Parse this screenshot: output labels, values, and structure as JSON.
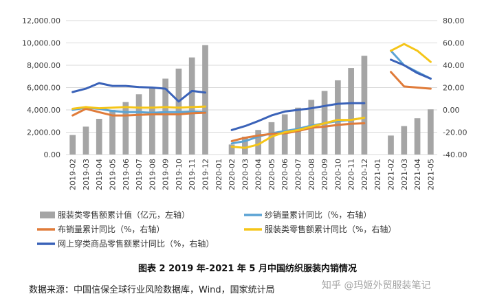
{
  "chart_data": {
    "type": "bar+line",
    "categories": [
      "2019-02",
      "2019-03",
      "2019-04",
      "2019-05",
      "2019-06",
      "2019-07",
      "2019-08",
      "2019-09",
      "2019-10",
      "2019-11",
      "2019-12",
      "2020-01",
      "2020-02",
      "2020-03",
      "2020-04",
      "2020-05",
      "2020-06",
      "2020-07",
      "2020-08",
      "2020-09",
      "2020-10",
      "2020-11",
      "2020-12",
      "2021-01",
      "2021-02",
      "2021-03",
      "2021-04",
      "2021-05"
    ],
    "left_axis": {
      "ticks": [
        "0.00",
        "2,000.00",
        "4,000.00",
        "6,000.00",
        "8,000.00",
        "10,000.00",
        "12,000.00"
      ],
      "ylim": [
        0,
        12000
      ]
    },
    "right_axis": {
      "ticks": [
        "-40.00",
        "-20.00",
        "0.00",
        "20.00",
        "40.00",
        "60.00",
        "80.00"
      ],
      "ylim": [
        -40,
        80
      ]
    },
    "grid": true,
    "legend_position": "bottom",
    "series": [
      {
        "name": "服装类零售额累计值（亿元，左轴）",
        "type": "bar",
        "axis": "left",
        "color": "#A5A5A5",
        "values": [
          1750,
          2500,
          3200,
          4000,
          4700,
          5400,
          6000,
          6800,
          7700,
          8700,
          9800,
          null,
          900,
          1600,
          2200,
          2900,
          3600,
          4200,
          4900,
          5700,
          6650,
          7750,
          8850,
          null,
          1700,
          2550,
          3250,
          4050
        ]
      },
      {
        "name": "纱销量累计同比（%，右轴）",
        "type": "line",
        "axis": "right",
        "color": "#5BA3D4",
        "values": [
          0,
          2,
          1,
          -1,
          -2,
          -2,
          -2.5,
          -2,
          -2,
          -1.5,
          -2,
          null,
          -30,
          -28,
          -24,
          -21,
          -19,
          -17,
          -14,
          -12,
          -10,
          -9,
          -7,
          null,
          53,
          40,
          34,
          28
        ]
      },
      {
        "name": "布销量累计同比（%，右轴）",
        "type": "line",
        "axis": "right",
        "color": "#E07B39",
        "values": [
          -5,
          1,
          -2,
          -5,
          -5,
          -4.5,
          -4,
          -4,
          -4,
          -3,
          -2.5,
          null,
          -28,
          -25,
          -23,
          -21.5,
          -21,
          -19,
          -16,
          -15,
          -13.5,
          -12.5,
          -12,
          null,
          34,
          21,
          20,
          19
        ]
      },
      {
        "name": "服装类零售额累计同比（%，右轴）",
        "type": "line",
        "axis": "right",
        "color": "#F5C518",
        "values": [
          1,
          2.5,
          1.5,
          2,
          2.5,
          2,
          2,
          2.5,
          2,
          2.5,
          3,
          null,
          -33,
          -34,
          -31,
          -24,
          -20,
          -18,
          -15,
          -12,
          -9,
          -9,
          -7,
          null,
          53,
          59,
          53,
          43
        ]
      },
      {
        "name": "网上穿类商品零售额累计同比（%，右轴）",
        "type": "line",
        "axis": "right",
        "color": "#3A62B8",
        "values": [
          16,
          19,
          24,
          21.5,
          21.5,
          20.5,
          20,
          19,
          7.5,
          17,
          15.5,
          null,
          -18,
          -14.5,
          -10,
          -5,
          -1.5,
          0,
          1.5,
          3.5,
          5.5,
          6,
          6,
          null,
          45,
          40,
          33,
          28
        ]
      }
    ]
  },
  "caption": "图表 2 2019 年-2021 年 5 月中国纺织服装内销情况",
  "source": "数据来源：中国信保全球行业风险数据库，Wind，国家统计局",
  "watermark": "知乎 @玛姬外贸服装笔记"
}
